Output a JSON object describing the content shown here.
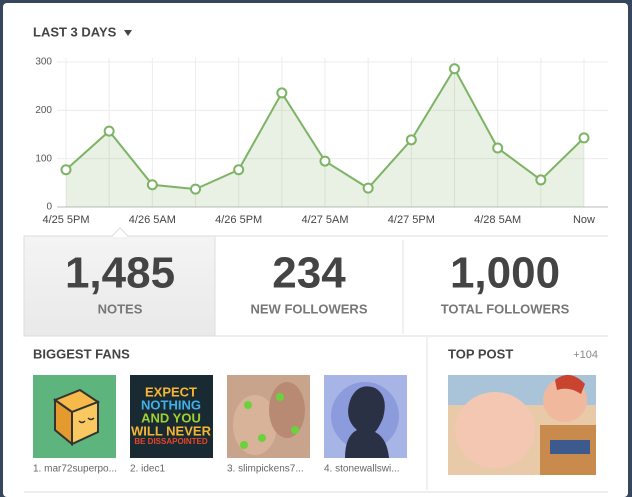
{
  "header": {
    "range_label": "LAST 3 DAYS"
  },
  "chart_data": {
    "type": "line",
    "categories": [
      "4/25 5PM",
      null,
      "4/26 5AM",
      null,
      "4/26 5PM",
      null,
      "4/27 5AM",
      null,
      "4/27 5PM",
      null,
      "4/28 5AM",
      null,
      "Now"
    ],
    "series": [
      {
        "name": "Notes",
        "color": "#7db365",
        "values": [
          77,
          157,
          46,
          37,
          77,
          236,
          95,
          39,
          139,
          286,
          122,
          56,
          143
        ]
      }
    ],
    "ylim": [
      0,
      300
    ],
    "yticks": [
      0,
      100,
      200,
      300
    ],
    "grid": true,
    "area": true
  },
  "stats": [
    {
      "value": "1,485",
      "label": "NOTES"
    },
    {
      "value": "234",
      "label": "NEW FOLLOWERS"
    },
    {
      "value": "1,000",
      "label": "TOTAL FOLLOWERS"
    }
  ],
  "fans": {
    "title": "BIGGEST FANS",
    "items": [
      {
        "caption": "1. mar72superpo..."
      },
      {
        "caption": "2. idec1",
        "image_text": [
          "EXPECT",
          "NOTHING",
          "AND YOU",
          "WILL NEVER",
          "BE DISSAPOINTED"
        ]
      },
      {
        "caption": "3. slimpickens7..."
      },
      {
        "caption": "4. stonewallswi..."
      }
    ]
  },
  "top_post": {
    "title": "TOP POST",
    "count": "+104"
  }
}
